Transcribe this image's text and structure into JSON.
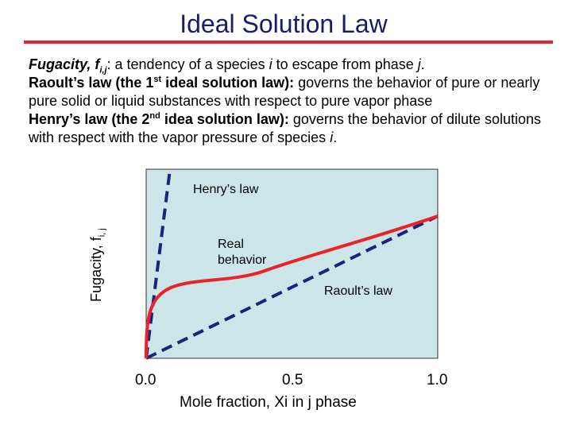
{
  "title": "Ideal Solution Law",
  "intro": {
    "line1": {
      "term": "Fugacity, f",
      "sub": "i,j",
      "rest_pre": ": a tendency of a species ",
      "i1": "i",
      "rest_mid": " to escape from phase ",
      "j1": "j",
      "rest_end": "."
    },
    "line2": {
      "bold_pre": "Raoult’s law (the 1",
      "sup": "st",
      "bold_post": " ideal solution law):",
      "rest": " governs the behavior of pure or nearly pure solid or liquid substances with respect to pure vapor phase"
    },
    "line3": {
      "bold_pre": "Henry’s law (the 2",
      "sup": "nd",
      "bold_post": " idea solution law):",
      "rest_pre": " governs the behavior of dilute solutions with respect with the vapor pressure of species ",
      "i": "i",
      "rest_end": "."
    }
  },
  "chart_data": {
    "type": "line",
    "ylabel": "Fugacity, f",
    "ylabel_sub": "i, j",
    "xlabel": "Mole fraction, Xi in j phase",
    "xlim": [
      0,
      1
    ],
    "x_ticks": [
      "0.0",
      "0.5",
      "1.0"
    ],
    "background": "#cce5e8",
    "series": [
      {
        "name": "Henry’s law",
        "style": "dashed",
        "color": "#1a237e"
      },
      {
        "name": "Raoult’s law",
        "style": "dashed",
        "color": "#1a237e"
      },
      {
        "name": "Real behavior",
        "style": "solid",
        "color": "#e8232a"
      }
    ],
    "annotations": {
      "henry": "Henry’s law",
      "real_line1": "Real",
      "real_line2": "behavior",
      "raoult": "Raoult’s law"
    }
  }
}
